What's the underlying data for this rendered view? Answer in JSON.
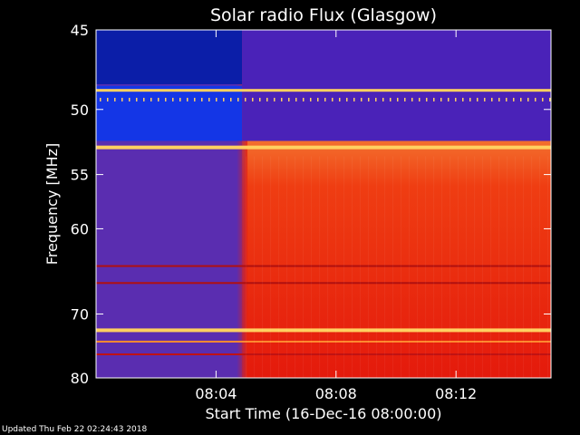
{
  "chart_data": {
    "type": "heatmap",
    "title": "Solar radio Flux (Glasgow)",
    "xlabel": "Start Time (16-Dec-16 08:00:00)",
    "ylabel": "Frequency [MHz]",
    "x_unit": "time",
    "xlim": [
      "08:00:00",
      "08:15:10"
    ],
    "ylim": [
      45,
      80
    ],
    "x_ticks": [
      "08:04",
      "08:08",
      "08:12"
    ],
    "y_ticks": [
      "45",
      "50",
      "55",
      "60",
      "70",
      "80"
    ],
    "burst_onset_time": "08:04:52",
    "colors": {
      "pre_onset": "#5a2db0",
      "post_onset": "#e8200c",
      "hot_band": "#ffd060",
      "cold_band": "#1436e6"
    }
  },
  "footer": "Updated Thu Feb 22 02:24:43 2018"
}
